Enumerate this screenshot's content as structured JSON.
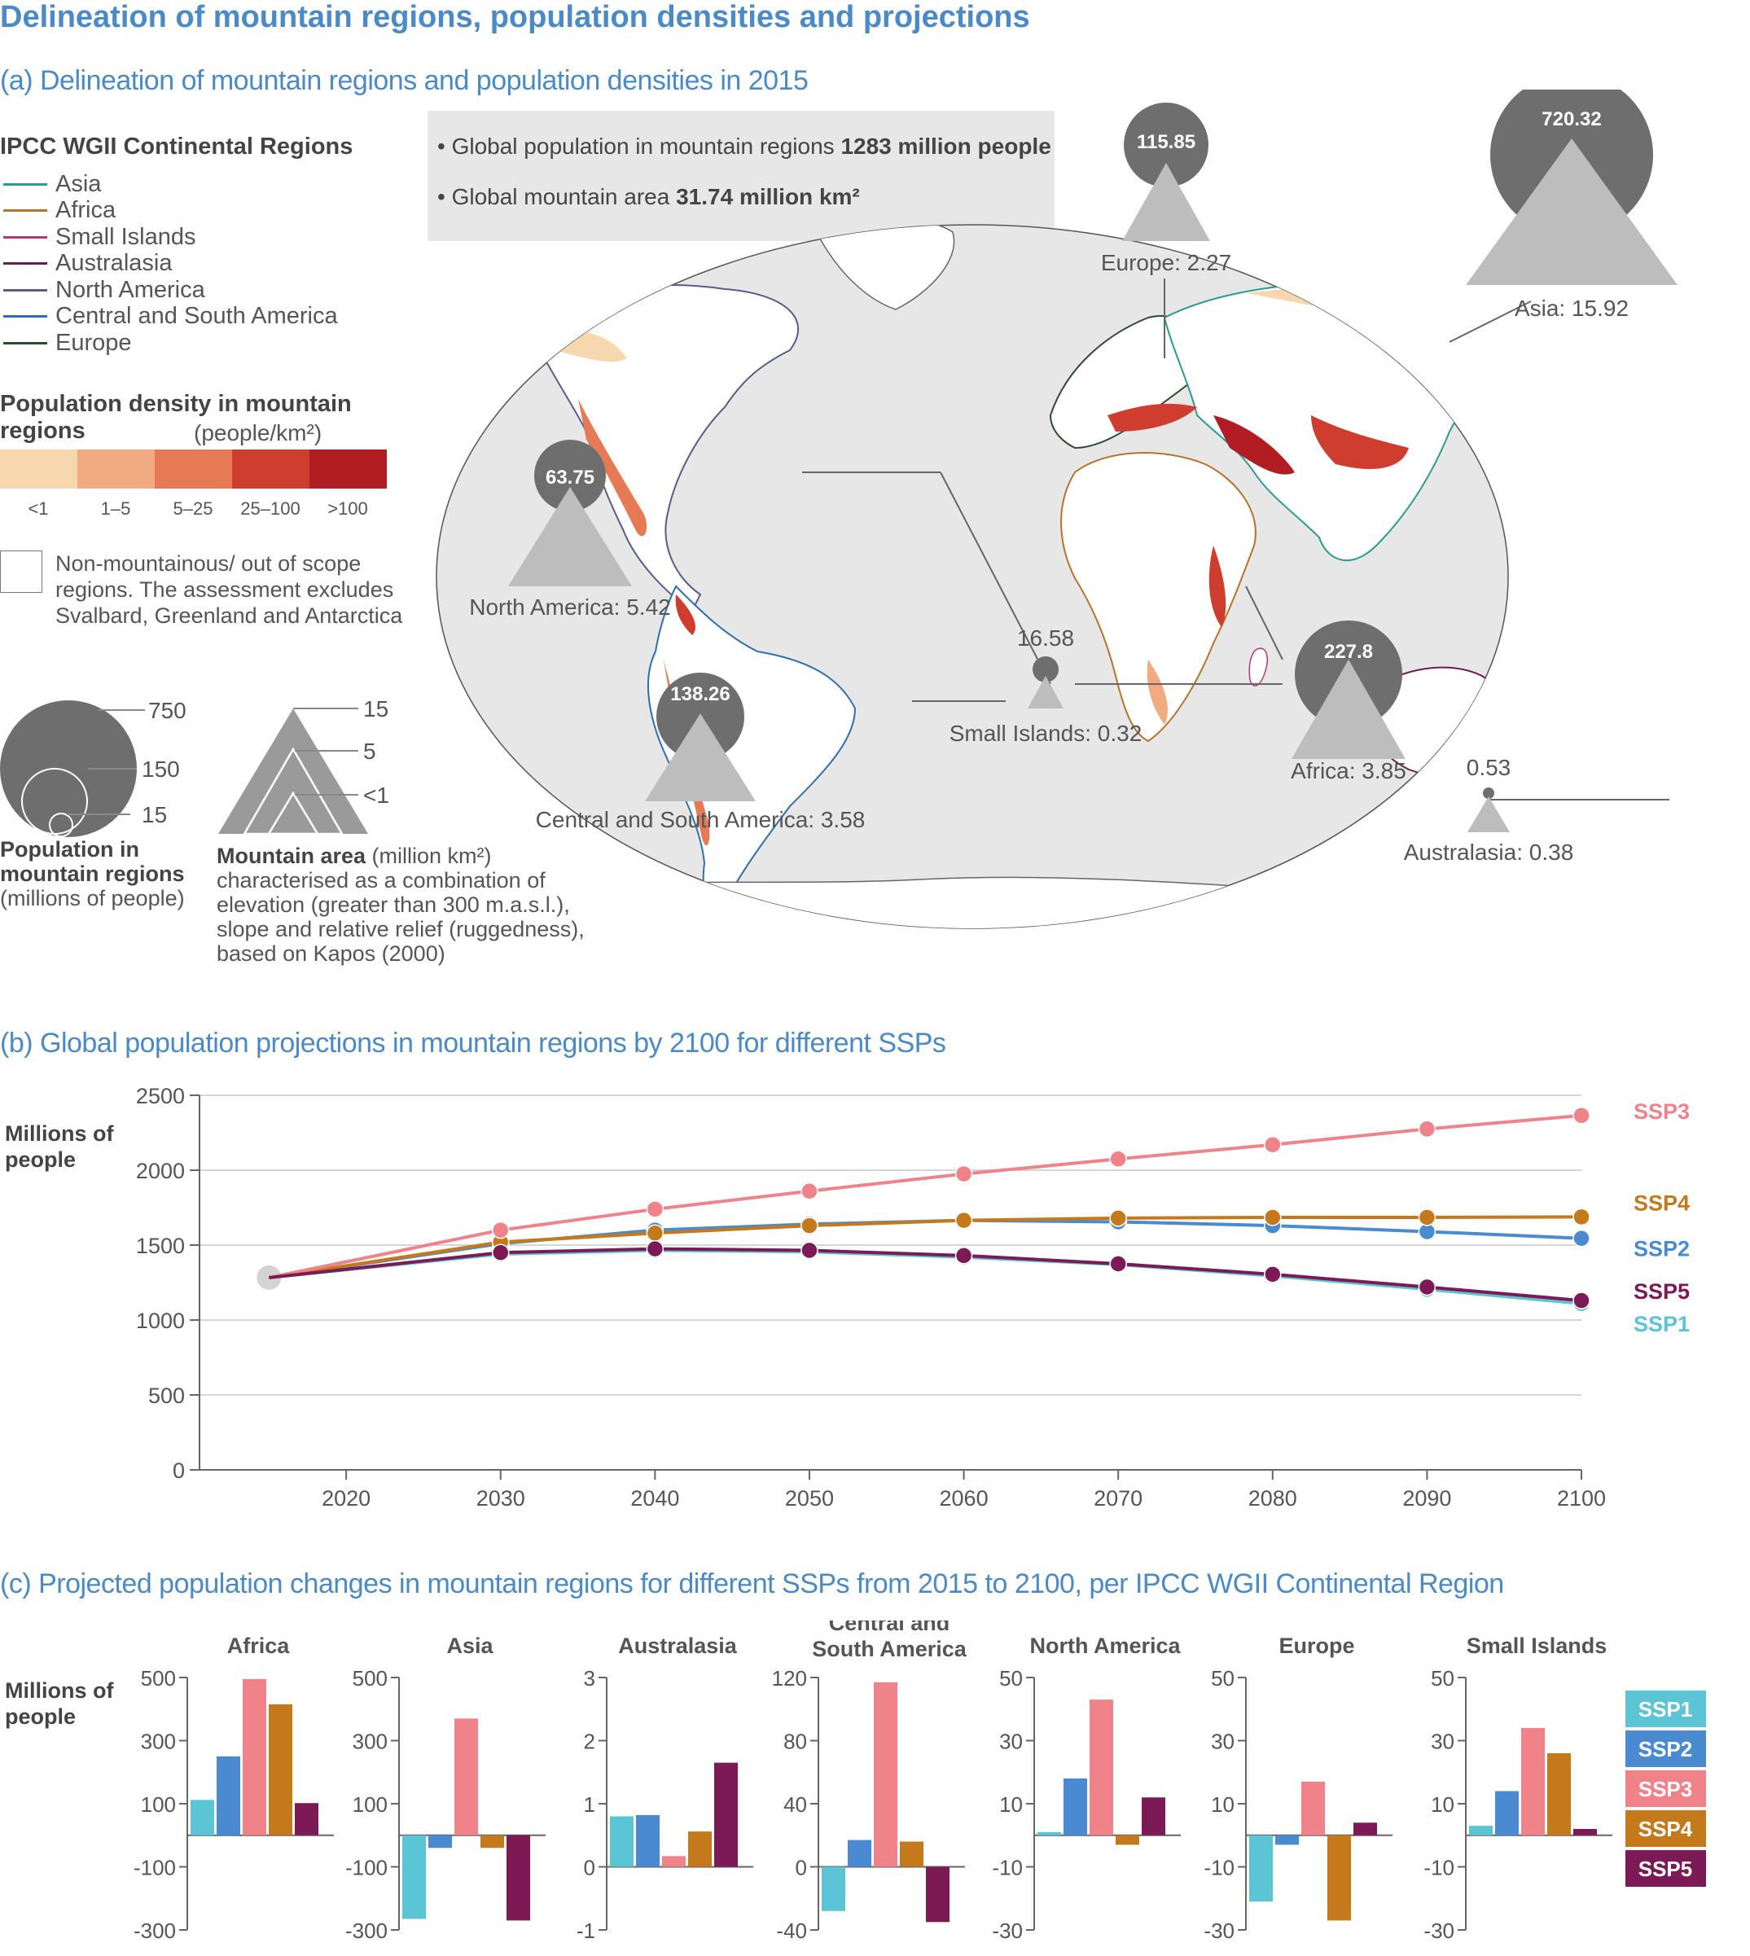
{
  "title": "Delineation of mountain regions, population densities and projections",
  "panel_a": {
    "subtitle": "(a) Delineation of mountain regions and population densities in 2015",
    "regions_legend": {
      "heading": "IPCC WGII Continental Regions",
      "items": [
        {
          "label": "Asia",
          "color": "#2a9d8f"
        },
        {
          "label": "Africa",
          "color": "#b5742a"
        },
        {
          "label": "Small Islands",
          "color": "#b03a7a"
        },
        {
          "label": "Australasia",
          "color": "#6b1d52"
        },
        {
          "label": "North America",
          "color": "#5b5b8a"
        },
        {
          "label": "Central and South America",
          "color": "#2f6fb0"
        },
        {
          "label": "Europe",
          "color": "#2e4a2e"
        }
      ]
    },
    "density_legend": {
      "heading_bold": "Population density in mountain regions",
      "heading_unit": "(people/km²)",
      "classes": [
        {
          "label": "<1",
          "color": "#f7d8ae"
        },
        {
          "label": "1–5",
          "color": "#f2ab80"
        },
        {
          "label": "5–25",
          "color": "#e57a55"
        },
        {
          "label": "25–100",
          "color": "#cf3d2e"
        },
        {
          "label": ">100",
          "color": "#b21d24"
        }
      ],
      "non_mountain_text": "Non-mountainous/ out of scope regions. The assessment excludes Svalbard, Greenland and Antarctica"
    },
    "size_legend": {
      "circle_values": [
        "750",
        "150",
        "15"
      ],
      "circle_caption_bold": "Population in mountain regions",
      "circle_caption_unit": "(millions of people)",
      "triangle_values": [
        "15",
        "5",
        "<1"
      ],
      "triangle_caption_bold": "Mountain area",
      "triangle_caption_rest": "(million km²) characterised as a combination of elevation (greater than 300 m.a.s.l.), slope and relative relief (ruggedness), based on Kapos (2000)"
    },
    "info": {
      "line1_prefix": "• Global population in mountain regions ",
      "line1_value": "1283 million people",
      "line2_prefix": "• Global mountain area ",
      "line2_value": "31.74 million km²"
    },
    "map_regions": [
      {
        "name": "North America",
        "population": 63.75,
        "area": 5.42,
        "label": "North America: 5.42"
      },
      {
        "name": "Europe",
        "population": 115.85,
        "area": 2.27,
        "label": "Europe: 2.27"
      },
      {
        "name": "Asia",
        "population": 720.32,
        "area": 15.92,
        "label": "Asia: 15.92"
      },
      {
        "name": "Africa",
        "population": 227.8,
        "area": 3.85,
        "label": "Africa: 3.85"
      },
      {
        "name": "Central and South America",
        "population": 138.26,
        "area": 3.58,
        "label": "Central and South America: 3.58"
      },
      {
        "name": "Small Islands",
        "population": 16.58,
        "area": 0.32,
        "label": "Small Islands: 0.32"
      },
      {
        "name": "Australasia",
        "population": 0.53,
        "area": 0.38,
        "label": "Australasia: 0.38"
      }
    ]
  },
  "panel_b": {
    "subtitle": "(b) Global population projections in mountain regions by 2100 for different SSPs",
    "ylabel": "Millions of people"
  },
  "panel_c": {
    "subtitle": "(c) Projected population changes in mountain regions for different SSPs from 2015 to 2100, per IPCC WGII Continental Region",
    "ylabel": "Millions of people"
  },
  "chart_data": [
    {
      "type": "line",
      "title": "(b) Global population projections in mountain regions by 2100 for different SSPs",
      "ylabel": "Millions of people",
      "ylim": [
        0,
        2500
      ],
      "yticks": [
        0,
        500,
        1000,
        1500,
        2000,
        2500
      ],
      "xticks": [
        2020,
        2030,
        2040,
        2050,
        2060,
        2070,
        2080,
        2090,
        2100
      ],
      "xlim": [
        2010.5,
        2100
      ],
      "baseline": {
        "x": 2015,
        "y": 1283,
        "color": "#d3d3d3"
      },
      "x": [
        2015,
        2030,
        2040,
        2050,
        2060,
        2070,
        2080,
        2090,
        2100
      ],
      "series": [
        {
          "name": "SSP1",
          "color": "#5bc5d5",
          "values": [
            1283,
            1440,
            1465,
            1455,
            1420,
            1370,
            1295,
            1205,
            1110
          ]
        },
        {
          "name": "SSP2",
          "color": "#4a8ad0",
          "values": [
            1283,
            1510,
            1600,
            1640,
            1665,
            1655,
            1630,
            1590,
            1545
          ]
        },
        {
          "name": "SSP3",
          "color": "#f0828a",
          "values": [
            1283,
            1600,
            1740,
            1860,
            1975,
            2075,
            2170,
            2275,
            2365
          ]
        },
        {
          "name": "SSP4",
          "color": "#c47a1a",
          "values": [
            1283,
            1520,
            1580,
            1630,
            1665,
            1680,
            1685,
            1685,
            1688
          ]
        },
        {
          "name": "SSP5",
          "color": "#7b1a55",
          "values": [
            1283,
            1450,
            1475,
            1465,
            1430,
            1375,
            1305,
            1220,
            1130
          ]
        }
      ]
    },
    {
      "type": "bar",
      "title": "(c) Projected population changes in mountain regions for different SSPs from 2015 to 2100, per IPCC WGII Continental Region",
      "ylabel": "Millions of people",
      "series_names": [
        "SSP1",
        "SSP2",
        "SSP3",
        "SSP4",
        "SSP5"
      ],
      "colors": [
        "#5bc5d5",
        "#4a8ad0",
        "#f0828a",
        "#c47a1a",
        "#7b1a55"
      ],
      "panels": [
        {
          "region": "Africa",
          "ylim": [
            -300,
            500
          ],
          "yticks": [
            -300,
            -100,
            100,
            300,
            500
          ],
          "values": [
            112,
            250,
            495,
            415,
            102
          ]
        },
        {
          "region": "Asia",
          "ylim": [
            -300,
            500
          ],
          "yticks": [
            -300,
            -100,
            100,
            300,
            500
          ],
          "values": [
            -265,
            -40,
            370,
            -40,
            -270
          ]
        },
        {
          "region": "Australasia",
          "ylim": [
            -1,
            3
          ],
          "yticks": [
            -1,
            0,
            1,
            2,
            3
          ],
          "values": [
            0.8,
            0.82,
            0.17,
            0.56,
            1.65
          ]
        },
        {
          "region": "Central and South America",
          "ylim": [
            -40,
            120
          ],
          "yticks": [
            -40,
            0,
            40,
            80,
            120
          ],
          "values": [
            -28,
            17,
            117,
            16,
            -35
          ]
        },
        {
          "region": "North America",
          "ylim": [
            -30,
            50
          ],
          "yticks": [
            -30,
            -10,
            10,
            30,
            50
          ],
          "values": [
            1,
            18,
            43,
            -3,
            12
          ]
        },
        {
          "region": "Europe",
          "ylim": [
            -30,
            50
          ],
          "yticks": [
            -30,
            -10,
            10,
            30,
            50
          ],
          "values": [
            -21,
            -3,
            17,
            -27,
            4
          ]
        },
        {
          "region": "Small Islands",
          "ylim": [
            -30,
            50
          ],
          "yticks": [
            -30,
            -10,
            10,
            30,
            50
          ],
          "values": [
            3,
            14,
            34,
            26,
            2
          ]
        }
      ]
    }
  ]
}
